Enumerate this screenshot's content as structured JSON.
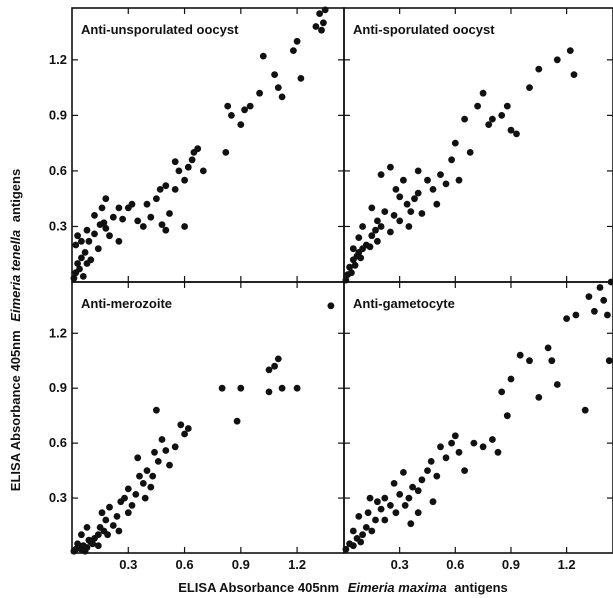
{
  "chart_data": {
    "type": "scatter",
    "xlabel": {
      "prefix": "ELISA Absorbance 405nm",
      "italic": "Eimeria maxima",
      "suffix": "antigens"
    },
    "ylabel": {
      "prefix": "ELISA Absorbance 405nm",
      "italic": "Eimeria tenella",
      "suffix": "antigens"
    },
    "xlim": [
      0.0,
      1.45
    ],
    "ylim": [
      0.0,
      1.48
    ],
    "x_ticks": [
      "0.3",
      "0.6",
      "0.9",
      "1.2"
    ],
    "y_ticks": [
      "0.3",
      "0.6",
      "0.9",
      "1.2"
    ],
    "panels": [
      {
        "title": "Anti-unsporulated oocyst",
        "points": [
          [
            0.01,
            0.02
          ],
          [
            0.02,
            0.05
          ],
          [
            0.03,
            0.1
          ],
          [
            0.04,
            0.07
          ],
          [
            0.05,
            0.13
          ],
          [
            0.06,
            0.03
          ],
          [
            0.07,
            0.16
          ],
          [
            0.08,
            0.1
          ],
          [
            0.09,
            0.22
          ],
          [
            0.02,
            0.2
          ],
          [
            0.05,
            0.22
          ],
          [
            0.12,
            0.26
          ],
          [
            0.15,
            0.31
          ],
          [
            0.17,
            0.32
          ],
          [
            0.18,
            0.29
          ],
          [
            0.2,
            0.25
          ],
          [
            0.22,
            0.35
          ],
          [
            0.25,
            0.22
          ],
          [
            0.27,
            0.34
          ],
          [
            0.3,
            0.4
          ],
          [
            0.32,
            0.42
          ],
          [
            0.35,
            0.33
          ],
          [
            0.38,
            0.3
          ],
          [
            0.4,
            0.42
          ],
          [
            0.42,
            0.35
          ],
          [
            0.45,
            0.45
          ],
          [
            0.47,
            0.5
          ],
          [
            0.5,
            0.52
          ],
          [
            0.52,
            0.37
          ],
          [
            0.55,
            0.5
          ],
          [
            0.57,
            0.6
          ],
          [
            0.6,
            0.55
          ],
          [
            0.62,
            0.62
          ],
          [
            0.64,
            0.66
          ],
          [
            0.65,
            0.7
          ],
          [
            0.67,
            0.72
          ],
          [
            0.55,
            0.65
          ],
          [
            0.6,
            0.3
          ],
          [
            0.5,
            0.28
          ],
          [
            0.48,
            0.31
          ],
          [
            0.7,
            0.6
          ],
          [
            0.82,
            0.7
          ],
          [
            0.83,
            0.95
          ],
          [
            0.85,
            0.9
          ],
          [
            0.9,
            0.85
          ],
          [
            0.92,
            0.93
          ],
          [
            0.95,
            0.95
          ],
          [
            1.0,
            1.02
          ],
          [
            1.02,
            1.22
          ],
          [
            1.08,
            1.12
          ],
          [
            1.1,
            1.05
          ],
          [
            1.12,
            1.0
          ],
          [
            1.18,
            1.25
          ],
          [
            1.2,
            1.3
          ],
          [
            1.22,
            1.1
          ],
          [
            1.3,
            1.38
          ],
          [
            1.32,
            1.45
          ],
          [
            1.34,
            1.4
          ],
          [
            1.35,
            1.47
          ],
          [
            1.33,
            1.36
          ],
          [
            0.1,
            0.12
          ],
          [
            0.14,
            0.18
          ],
          [
            0.16,
            0.4
          ],
          [
            0.18,
            0.45
          ],
          [
            0.08,
            0.28
          ],
          [
            0.03,
            0.25
          ],
          [
            0.12,
            0.36
          ],
          [
            0.25,
            0.4
          ]
        ]
      },
      {
        "title": "Anti-sporulated oocyst",
        "points": [
          [
            0.01,
            0.01
          ],
          [
            0.02,
            0.04
          ],
          [
            0.03,
            0.08
          ],
          [
            0.04,
            0.05
          ],
          [
            0.05,
            0.12
          ],
          [
            0.06,
            0.09
          ],
          [
            0.07,
            0.14
          ],
          [
            0.08,
            0.16
          ],
          [
            0.09,
            0.13
          ],
          [
            0.1,
            0.18
          ],
          [
            0.12,
            0.2
          ],
          [
            0.14,
            0.19
          ],
          [
            0.15,
            0.25
          ],
          [
            0.17,
            0.28
          ],
          [
            0.18,
            0.33
          ],
          [
            0.2,
            0.3
          ],
          [
            0.22,
            0.38
          ],
          [
            0.25,
            0.27
          ],
          [
            0.27,
            0.36
          ],
          [
            0.28,
            0.5
          ],
          [
            0.3,
            0.46
          ],
          [
            0.32,
            0.55
          ],
          [
            0.34,
            0.42
          ],
          [
            0.36,
            0.38
          ],
          [
            0.38,
            0.45
          ],
          [
            0.4,
            0.48
          ],
          [
            0.42,
            0.37
          ],
          [
            0.45,
            0.55
          ],
          [
            0.48,
            0.5
          ],
          [
            0.5,
            0.42
          ],
          [
            0.52,
            0.58
          ],
          [
            0.55,
            0.53
          ],
          [
            0.58,
            0.66
          ],
          [
            0.6,
            0.75
          ],
          [
            0.62,
            0.55
          ],
          [
            0.65,
            0.88
          ],
          [
            0.68,
            0.7
          ],
          [
            0.72,
            0.95
          ],
          [
            0.75,
            1.02
          ],
          [
            0.78,
            0.85
          ],
          [
            0.8,
            0.88
          ],
          [
            0.85,
            0.9
          ],
          [
            0.88,
            0.95
          ],
          [
            0.9,
            0.82
          ],
          [
            0.93,
            0.8
          ],
          [
            1.0,
            1.05
          ],
          [
            1.05,
            1.15
          ],
          [
            1.15,
            1.2
          ],
          [
            1.22,
            1.25
          ],
          [
            1.24,
            1.12
          ],
          [
            0.05,
            0.18
          ],
          [
            0.1,
            0.3
          ],
          [
            0.15,
            0.4
          ],
          [
            0.2,
            0.58
          ],
          [
            0.25,
            0.62
          ],
          [
            0.3,
            0.33
          ],
          [
            0.35,
            0.3
          ],
          [
            0.08,
            0.24
          ],
          [
            0.18,
            0.22
          ],
          [
            0.4,
            0.6
          ]
        ]
      },
      {
        "title": "Anti-merozoite",
        "points": [
          [
            0.01,
            0.01
          ],
          [
            0.02,
            0.02
          ],
          [
            0.03,
            0.05
          ],
          [
            0.04,
            0.03
          ],
          [
            0.05,
            0.02
          ],
          [
            0.06,
            0.04
          ],
          [
            0.07,
            0.01
          ],
          [
            0.08,
            0.03
          ],
          [
            0.09,
            0.07
          ],
          [
            0.1,
            0.06
          ],
          [
            0.12,
            0.08
          ],
          [
            0.14,
            0.1
          ],
          [
            0.15,
            0.14
          ],
          [
            0.17,
            0.12
          ],
          [
            0.18,
            0.18
          ],
          [
            0.2,
            0.25
          ],
          [
            0.22,
            0.15
          ],
          [
            0.24,
            0.2
          ],
          [
            0.26,
            0.28
          ],
          [
            0.28,
            0.3
          ],
          [
            0.3,
            0.35
          ],
          [
            0.32,
            0.26
          ],
          [
            0.34,
            0.32
          ],
          [
            0.36,
            0.42
          ],
          [
            0.38,
            0.38
          ],
          [
            0.4,
            0.45
          ],
          [
            0.42,
            0.36
          ],
          [
            0.44,
            0.55
          ],
          [
            0.46,
            0.5
          ],
          [
            0.48,
            0.62
          ],
          [
            0.5,
            0.56
          ],
          [
            0.52,
            0.48
          ],
          [
            0.55,
            0.58
          ],
          [
            0.58,
            0.7
          ],
          [
            0.6,
            0.65
          ],
          [
            0.62,
            0.68
          ],
          [
            0.45,
            0.78
          ],
          [
            0.8,
            0.9
          ],
          [
            0.88,
            0.72
          ],
          [
            0.9,
            0.9
          ],
          [
            1.05,
            0.88
          ],
          [
            1.08,
            1.02
          ],
          [
            1.1,
            1.06
          ],
          [
            1.12,
            0.9
          ],
          [
            1.2,
            0.9
          ],
          [
            1.38,
            1.35
          ],
          [
            0.05,
            0.1
          ],
          [
            0.08,
            0.14
          ],
          [
            0.11,
            0.05
          ],
          [
            0.14,
            0.04
          ],
          [
            0.16,
            0.22
          ],
          [
            0.19,
            0.1
          ],
          [
            0.25,
            0.12
          ],
          [
            0.3,
            0.22
          ],
          [
            0.35,
            0.52
          ],
          [
            0.39,
            0.3
          ],
          [
            0.43,
            0.42
          ],
          [
            1.05,
            1.0
          ]
        ]
      },
      {
        "title": "Anti-gametocyte",
        "points": [
          [
            0.01,
            0.02
          ],
          [
            0.03,
            0.05
          ],
          [
            0.05,
            0.04
          ],
          [
            0.07,
            0.08
          ],
          [
            0.09,
            0.06
          ],
          [
            0.1,
            0.1
          ],
          [
            0.12,
            0.14
          ],
          [
            0.13,
            0.22
          ],
          [
            0.15,
            0.12
          ],
          [
            0.17,
            0.18
          ],
          [
            0.18,
            0.28
          ],
          [
            0.2,
            0.24
          ],
          [
            0.22,
            0.3
          ],
          [
            0.25,
            0.26
          ],
          [
            0.27,
            0.38
          ],
          [
            0.3,
            0.32
          ],
          [
            0.32,
            0.44
          ],
          [
            0.35,
            0.3
          ],
          [
            0.37,
            0.36
          ],
          [
            0.4,
            0.34
          ],
          [
            0.42,
            0.4
          ],
          [
            0.45,
            0.45
          ],
          [
            0.47,
            0.5
          ],
          [
            0.5,
            0.42
          ],
          [
            0.52,
            0.58
          ],
          [
            0.55,
            0.52
          ],
          [
            0.58,
            0.6
          ],
          [
            0.6,
            0.64
          ],
          [
            0.62,
            0.55
          ],
          [
            0.65,
            0.45
          ],
          [
            0.7,
            0.6
          ],
          [
            0.75,
            0.58
          ],
          [
            0.8,
            0.62
          ],
          [
            0.83,
            0.55
          ],
          [
            0.85,
            0.88
          ],
          [
            0.88,
            0.75
          ],
          [
            0.9,
            0.95
          ],
          [
            0.95,
            1.08
          ],
          [
            1.0,
            1.05
          ],
          [
            1.05,
            0.85
          ],
          [
            1.1,
            1.12
          ],
          [
            1.12,
            1.05
          ],
          [
            1.15,
            0.92
          ],
          [
            1.2,
            1.28
          ],
          [
            1.25,
            1.3
          ],
          [
            1.3,
            0.78
          ],
          [
            1.32,
            1.4
          ],
          [
            1.35,
            1.32
          ],
          [
            1.38,
            1.45
          ],
          [
            1.4,
            1.38
          ],
          [
            1.42,
            1.3
          ],
          [
            1.43,
            1.05
          ],
          [
            1.44,
            1.48
          ],
          [
            0.05,
            0.12
          ],
          [
            0.08,
            0.2
          ],
          [
            0.14,
            0.3
          ],
          [
            0.22,
            0.18
          ],
          [
            0.28,
            0.22
          ],
          [
            0.33,
            0.26
          ],
          [
            0.36,
            0.16
          ],
          [
            0.4,
            0.22
          ],
          [
            0.48,
            0.28
          ]
        ]
      }
    ]
  }
}
